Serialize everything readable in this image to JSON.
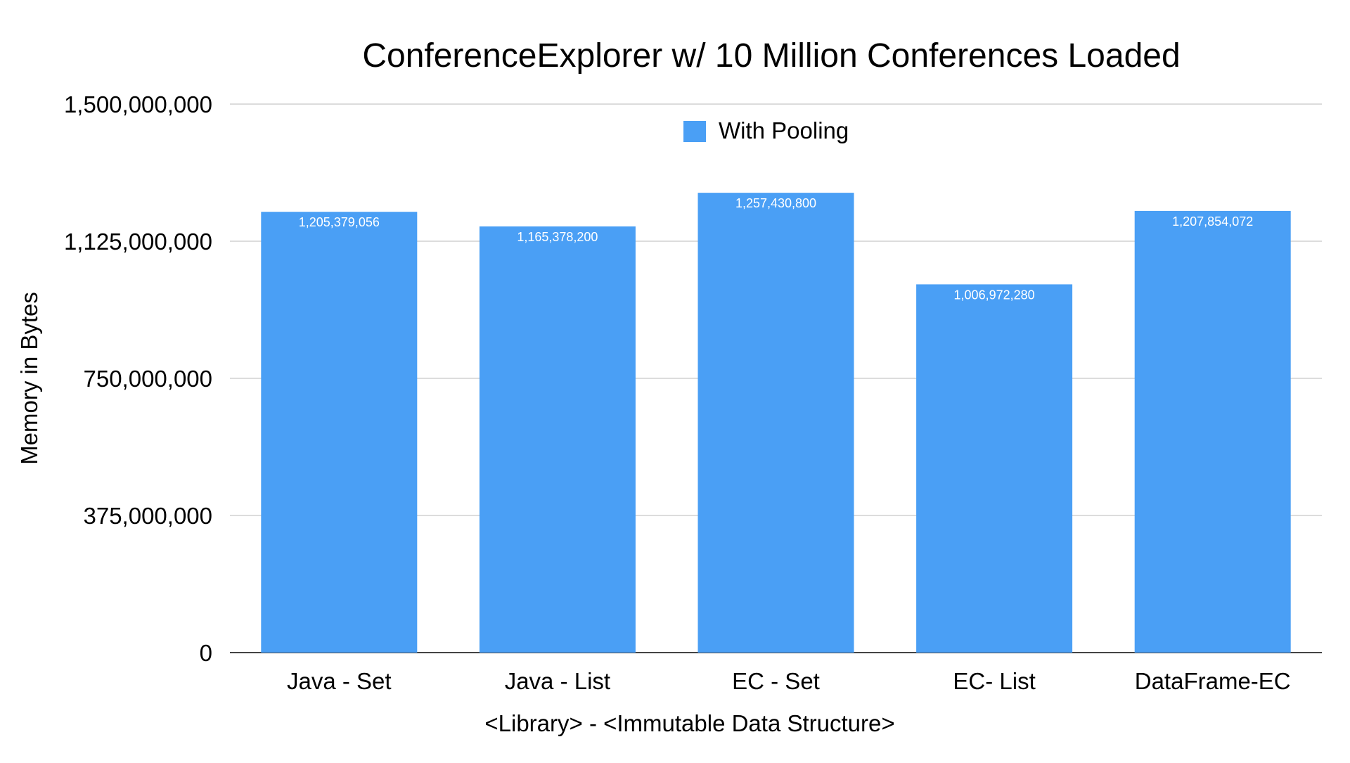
{
  "chart_data": {
    "type": "bar",
    "title": "ConferenceExplorer w/ 10 Million Conferences Loaded",
    "xlabel": "<Library> - <Immutable Data Structure>",
    "ylabel": "Memory in Bytes",
    "categories": [
      "Java - Set",
      "Java - List",
      "EC - Set",
      "EC- List",
      "DataFrame-EC"
    ],
    "series": [
      {
        "name": "With Pooling",
        "color": "#4a9ff5",
        "values": [
          1205379056,
          1165378200,
          1257430800,
          1006972280,
          1207854072
        ]
      }
    ],
    "data_labels": [
      "1,205,379,056",
      "1,165,378,200",
      "1,257,430,800",
      "1,006,972,280",
      "1,207,854,072"
    ],
    "ylim": [
      0,
      1500000000
    ],
    "y_ticks": [
      0,
      375000000,
      750000000,
      1125000000,
      1500000000
    ],
    "y_tick_labels": [
      "0",
      "375,000,000",
      "750,000,000",
      "1,125,000,000",
      "1,500,000,000"
    ],
    "grid": true,
    "legend_position": "top-center",
    "colors": {
      "bar": "#4a9ff5",
      "gridline": "#d0d0d0",
      "axis": "#444444",
      "text": "#000000",
      "data_label": "#ffffff"
    }
  }
}
